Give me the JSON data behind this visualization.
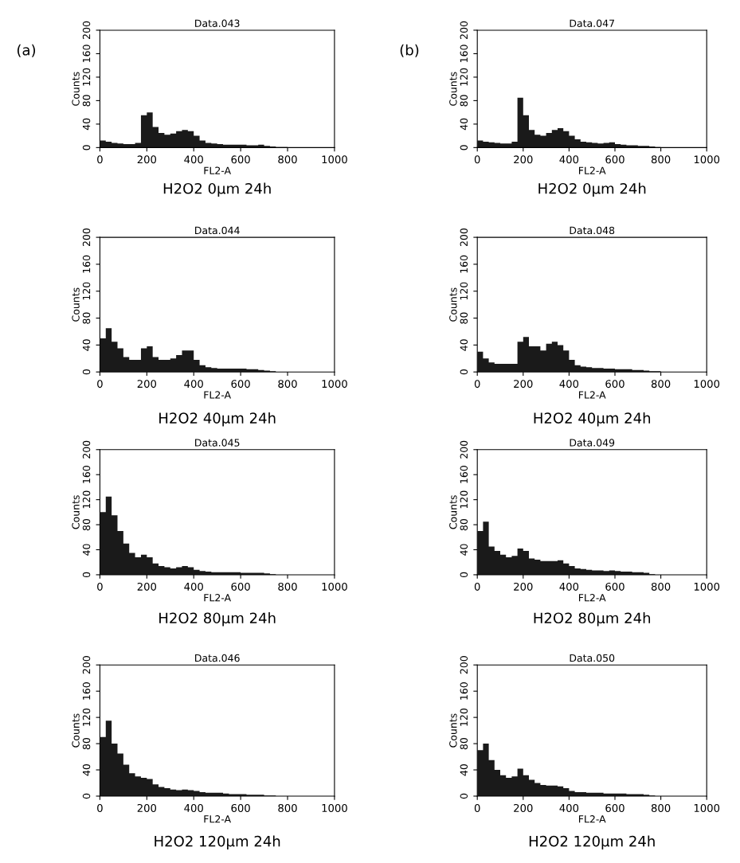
{
  "chart_data": [
    {
      "type": "histogram",
      "title": "Data.043",
      "xlabel": "FL2-A",
      "ylabel": "Counts",
      "color": "#1a1a1a",
      "xlim": [
        0,
        1000
      ],
      "ylim": [
        0,
        200
      ],
      "xticks": [
        0,
        200,
        400,
        600,
        800,
        1000
      ],
      "yticks": [
        0,
        40,
        80,
        120,
        160,
        200
      ],
      "bins": [
        0,
        25,
        50,
        75,
        100,
        125,
        150,
        175,
        200,
        225,
        250,
        275,
        300,
        325,
        350,
        375,
        400,
        425,
        450,
        475,
        500,
        525,
        550,
        575,
        600,
        625,
        650,
        675,
        700,
        725,
        750,
        775,
        800
      ],
      "values": [
        12,
        10,
        8,
        7,
        6,
        6,
        8,
        55,
        60,
        35,
        25,
        22,
        24,
        28,
        30,
        28,
        20,
        12,
        8,
        7,
        6,
        5,
        5,
        5,
        5,
        4,
        4,
        5,
        3,
        2,
        1,
        1
      ],
      "annotations": [
        "(a)",
        "H2O2 0μm 24h"
      ]
    },
    {
      "type": "histogram",
      "title": "Data.047",
      "xlabel": "FL2-A",
      "ylabel": "Counts",
      "color": "#1a1a1a",
      "xlim": [
        0,
        1000
      ],
      "ylim": [
        0,
        200
      ],
      "xticks": [
        0,
        200,
        400,
        600,
        800,
        1000
      ],
      "yticks": [
        0,
        40,
        80,
        120,
        160,
        200
      ],
      "bins": [
        0,
        25,
        50,
        75,
        100,
        125,
        150,
        175,
        200,
        225,
        250,
        275,
        300,
        325,
        350,
        375,
        400,
        425,
        450,
        475,
        500,
        525,
        550,
        575,
        600,
        625,
        650,
        675,
        700,
        725,
        750,
        775,
        800
      ],
      "values": [
        12,
        10,
        9,
        8,
        7,
        7,
        10,
        85,
        55,
        30,
        22,
        20,
        25,
        30,
        33,
        28,
        20,
        14,
        10,
        9,
        8,
        7,
        8,
        9,
        6,
        5,
        4,
        4,
        3,
        3,
        2,
        1
      ],
      "annotations": [
        "(b)",
        "H2O2 0μm 24h"
      ]
    },
    {
      "type": "histogram",
      "title": "Data.044",
      "xlabel": "FL2-A",
      "ylabel": "Counts",
      "color": "#1a1a1a",
      "xlim": [
        0,
        1000
      ],
      "ylim": [
        0,
        200
      ],
      "xticks": [
        0,
        200,
        400,
        600,
        800,
        1000
      ],
      "yticks": [
        0,
        40,
        80,
        120,
        160,
        200
      ],
      "bins": [
        0,
        25,
        50,
        75,
        100,
        125,
        150,
        175,
        200,
        225,
        250,
        275,
        300,
        325,
        350,
        375,
        400,
        425,
        450,
        475,
        500,
        525,
        550,
        575,
        600,
        625,
        650,
        675,
        700,
        725,
        750,
        775,
        800
      ],
      "values": [
        50,
        65,
        45,
        35,
        22,
        18,
        18,
        35,
        38,
        22,
        18,
        18,
        20,
        25,
        32,
        32,
        18,
        10,
        7,
        6,
        5,
        5,
        5,
        5,
        5,
        4,
        4,
        3,
        2,
        1,
        0,
        0
      ],
      "annotations": [
        "H2O2 40μm 24h"
      ]
    },
    {
      "type": "histogram",
      "title": "Data.048",
      "xlabel": "FL2-A",
      "ylabel": "Counts",
      "color": "#1a1a1a",
      "xlim": [
        0,
        1000
      ],
      "ylim": [
        0,
        200
      ],
      "xticks": [
        0,
        200,
        400,
        600,
        800,
        1000
      ],
      "yticks": [
        0,
        40,
        80,
        120,
        160,
        200
      ],
      "bins": [
        0,
        25,
        50,
        75,
        100,
        125,
        150,
        175,
        200,
        225,
        250,
        275,
        300,
        325,
        350,
        375,
        400,
        425,
        450,
        475,
        500,
        525,
        550,
        575,
        600,
        625,
        650,
        675,
        700,
        725,
        750,
        775,
        800
      ],
      "values": [
        30,
        20,
        14,
        12,
        12,
        12,
        12,
        45,
        52,
        38,
        38,
        32,
        42,
        45,
        40,
        32,
        18,
        10,
        8,
        7,
        6,
        6,
        5,
        5,
        4,
        4,
        4,
        3,
        3,
        2,
        1,
        1
      ],
      "annotations": [
        "H2O2 40μm 24h"
      ]
    },
    {
      "type": "histogram",
      "title": "Data.045",
      "xlabel": "FL2-A",
      "ylabel": "Counts",
      "color": "#1a1a1a",
      "xlim": [
        0,
        1000
      ],
      "ylim": [
        0,
        200
      ],
      "xticks": [
        0,
        200,
        400,
        600,
        800,
        1000
      ],
      "yticks": [
        0,
        40,
        80,
        120,
        160,
        200
      ],
      "bins": [
        0,
        25,
        50,
        75,
        100,
        125,
        150,
        175,
        200,
        225,
        250,
        275,
        300,
        325,
        350,
        375,
        400,
        425,
        450,
        475,
        500,
        525,
        550,
        575,
        600,
        625,
        650,
        675,
        700,
        725,
        750,
        775,
        800
      ],
      "values": [
        100,
        125,
        95,
        70,
        50,
        35,
        28,
        32,
        28,
        18,
        14,
        12,
        10,
        12,
        14,
        12,
        8,
        6,
        5,
        4,
        4,
        4,
        4,
        4,
        3,
        3,
        3,
        3,
        2,
        1,
        0,
        0
      ],
      "annotations": [
        "H2O2 80μm 24h"
      ]
    },
    {
      "type": "histogram",
      "title": "Data.049",
      "xlabel": "FL2-A",
      "ylabel": "Counts",
      "color": "#1a1a1a",
      "xlim": [
        0,
        1000
      ],
      "ylim": [
        0,
        200
      ],
      "xticks": [
        0,
        200,
        400,
        600,
        800,
        1000
      ],
      "yticks": [
        0,
        40,
        80,
        120,
        160,
        200
      ],
      "bins": [
        0,
        25,
        50,
        75,
        100,
        125,
        150,
        175,
        200,
        225,
        250,
        275,
        300,
        325,
        350,
        375,
        400,
        425,
        450,
        475,
        500,
        525,
        550,
        575,
        600,
        625,
        650,
        675,
        700,
        725,
        750,
        775,
        800
      ],
      "values": [
        70,
        85,
        45,
        38,
        32,
        28,
        30,
        42,
        38,
        26,
        24,
        22,
        22,
        22,
        23,
        18,
        14,
        10,
        9,
        8,
        7,
        7,
        6,
        7,
        6,
        5,
        5,
        4,
        4,
        3,
        1,
        0
      ],
      "annotations": [
        "H2O2 80μm 24h"
      ]
    },
    {
      "type": "histogram",
      "title": "Data.046",
      "xlabel": "FL2-A",
      "ylabel": "Counts",
      "color": "#1a1a1a",
      "xlim": [
        0,
        1000
      ],
      "ylim": [
        0,
        200
      ],
      "xticks": [
        0,
        200,
        400,
        600,
        800,
        1000
      ],
      "yticks": [
        0,
        40,
        80,
        120,
        160,
        200
      ],
      "bins": [
        0,
        25,
        50,
        75,
        100,
        125,
        150,
        175,
        200,
        225,
        250,
        275,
        300,
        325,
        350,
        375,
        400,
        425,
        450,
        475,
        500,
        525,
        550,
        575,
        600,
        625,
        650,
        675,
        700,
        725,
        750,
        775,
        800
      ],
      "values": [
        90,
        115,
        80,
        65,
        48,
        35,
        30,
        28,
        26,
        18,
        14,
        12,
        10,
        9,
        10,
        9,
        8,
        6,
        5,
        5,
        5,
        4,
        3,
        3,
        3,
        2,
        2,
        2,
        1,
        1,
        0,
        0
      ],
      "annotations": [
        "H2O2 120μm 24h"
      ]
    },
    {
      "type": "histogram",
      "title": "Data.050",
      "xlabel": "FL2-A",
      "ylabel": "Counts",
      "color": "#1a1a1a",
      "xlim": [
        0,
        1000
      ],
      "ylim": [
        0,
        200
      ],
      "xticks": [
        0,
        200,
        400,
        600,
        800,
        1000
      ],
      "yticks": [
        0,
        40,
        80,
        120,
        160,
        200
      ],
      "bins": [
        0,
        25,
        50,
        75,
        100,
        125,
        150,
        175,
        200,
        225,
        250,
        275,
        300,
        325,
        350,
        375,
        400,
        425,
        450,
        475,
        500,
        525,
        550,
        575,
        600,
        625,
        650,
        675,
        700,
        725,
        750,
        775,
        800
      ],
      "values": [
        70,
        80,
        55,
        40,
        32,
        28,
        30,
        42,
        32,
        25,
        20,
        17,
        16,
        16,
        15,
        12,
        8,
        6,
        6,
        5,
        5,
        5,
        4,
        4,
        4,
        4,
        3,
        3,
        3,
        2,
        1,
        0
      ],
      "annotations": [
        "H2O2 120μm 24h"
      ]
    }
  ]
}
